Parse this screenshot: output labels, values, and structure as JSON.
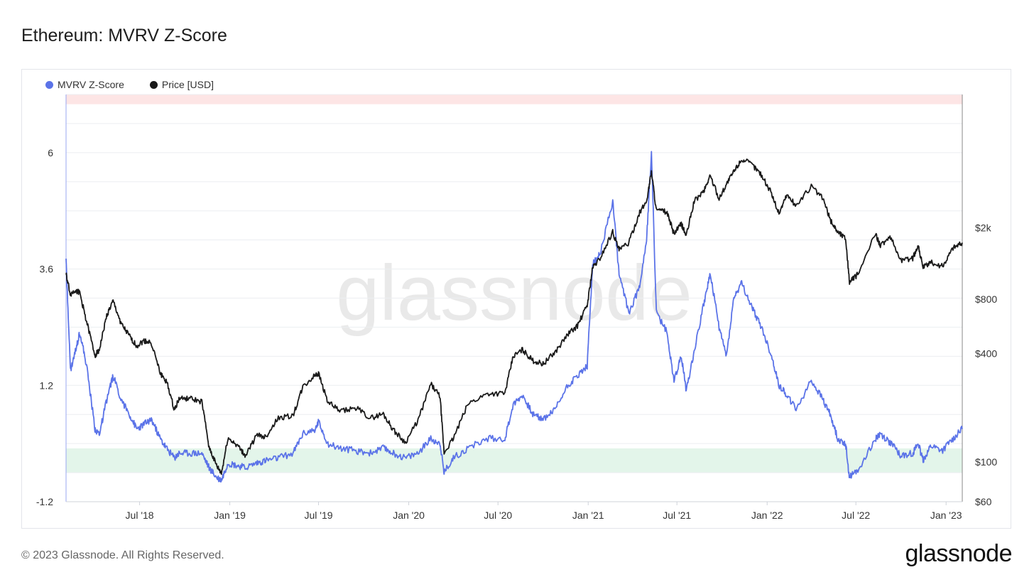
{
  "title": "Ethereum: MVRV Z-Score",
  "footer": {
    "copyright": "© 2023 Glassnode. All Rights Reserved.",
    "brand": "glassnode",
    "watermark": "glassnode"
  },
  "colors": {
    "mvrv": "#5b73e8",
    "price": "#1a1a1a",
    "red_band": "#fde5e5",
    "green_band": "#e3f5ea",
    "grid": "#eceef1"
  },
  "legend": {
    "mvrv_label": "MVRV Z-Score",
    "price_label": "Price [USD]"
  },
  "chart_data": {
    "type": "line",
    "title": "Ethereum: MVRV Z-Score",
    "x_range": [
      "2018-02-01",
      "2023-02-03"
    ],
    "x_ticks": [
      {
        "label": "Jul '18",
        "date": "2018-07-01"
      },
      {
        "label": "Jan '19",
        "date": "2019-01-01"
      },
      {
        "label": "Jul '19",
        "date": "2019-07-01"
      },
      {
        "label": "Jan '20",
        "date": "2020-01-01"
      },
      {
        "label": "Jul '20",
        "date": "2020-07-01"
      },
      {
        "label": "Jan '21",
        "date": "2021-01-01"
      },
      {
        "label": "Jul '21",
        "date": "2021-07-01"
      },
      {
        "label": "Jan '22",
        "date": "2022-01-01"
      },
      {
        "label": "Jul '22",
        "date": "2022-07-01"
      },
      {
        "label": "Jan '23",
        "date": "2023-01-01"
      }
    ],
    "y_left": {
      "ylim": [
        -1.2,
        7.2
      ],
      "ticks": [
        {
          "label": "-1.2",
          "value": -1.2
        },
        {
          "label": "1.2",
          "value": 1.2
        },
        {
          "label": "3.6",
          "value": 3.6
        },
        {
          "label": "6",
          "value": 6
        }
      ]
    },
    "y_right": {
      "scale": "log",
      "ylim": [
        60,
        11000
      ],
      "ticks": [
        {
          "label": "$60",
          "value": 60
        },
        {
          "label": "$100",
          "value": 100
        },
        {
          "label": "$400",
          "value": 400
        },
        {
          "label": "$800",
          "value": 800
        },
        {
          "label": "$2k",
          "value": 2000
        }
      ]
    },
    "bands": [
      {
        "name": "red",
        "from": 7.0,
        "to": 7.2
      },
      {
        "name": "green",
        "from": -0.1,
        "to": -0.6
      }
    ],
    "series": [
      {
        "name": "MVRV Z-Score",
        "axis": "left",
        "points": [
          [
            "2018-02-01",
            3.8
          ],
          [
            "2018-02-10",
            1.5
          ],
          [
            "2018-02-20",
            1.9
          ],
          [
            "2018-03-01",
            2.3
          ],
          [
            "2018-03-15",
            1.6
          ],
          [
            "2018-04-01",
            0.3
          ],
          [
            "2018-04-10",
            0.2
          ],
          [
            "2018-04-25",
            0.9
          ],
          [
            "2018-05-08",
            1.4
          ],
          [
            "2018-05-25",
            0.9
          ],
          [
            "2018-06-10",
            0.6
          ],
          [
            "2018-06-25",
            0.3
          ],
          [
            "2018-07-10",
            0.4
          ],
          [
            "2018-07-25",
            0.5
          ],
          [
            "2018-08-12",
            0.1
          ],
          [
            "2018-08-25",
            -0.1
          ],
          [
            "2018-09-10",
            -0.3
          ],
          [
            "2018-09-20",
            -0.2
          ],
          [
            "2018-10-10",
            -0.2
          ],
          [
            "2018-11-05",
            -0.2
          ],
          [
            "2018-11-20",
            -0.5
          ],
          [
            "2018-12-05",
            -0.7
          ],
          [
            "2018-12-15",
            -0.75
          ],
          [
            "2018-12-28",
            -0.4
          ],
          [
            "2019-01-15",
            -0.45
          ],
          [
            "2019-02-01",
            -0.5
          ],
          [
            "2019-02-25",
            -0.4
          ],
          [
            "2019-03-15",
            -0.35
          ],
          [
            "2019-04-10",
            -0.3
          ],
          [
            "2019-05-10",
            -0.2
          ],
          [
            "2019-05-30",
            0.2
          ],
          [
            "2019-06-25",
            0.3
          ],
          [
            "2019-07-01",
            0.45
          ],
          [
            "2019-07-20",
            0.0
          ],
          [
            "2019-08-15",
            -0.1
          ],
          [
            "2019-09-15",
            -0.15
          ],
          [
            "2019-10-15",
            -0.2
          ],
          [
            "2019-11-10",
            -0.1
          ],
          [
            "2019-12-01",
            -0.2
          ],
          [
            "2019-12-25",
            -0.3
          ],
          [
            "2020-01-20",
            -0.2
          ],
          [
            "2020-02-15",
            0.1
          ],
          [
            "2020-03-05",
            0.0
          ],
          [
            "2020-03-13",
            -0.6
          ],
          [
            "2020-04-01",
            -0.3
          ],
          [
            "2020-05-01",
            -0.1
          ],
          [
            "2020-06-10",
            0.1
          ],
          [
            "2020-07-15",
            0.1
          ],
          [
            "2020-08-01",
            0.8
          ],
          [
            "2020-08-20",
            1.0
          ],
          [
            "2020-09-10",
            0.6
          ],
          [
            "2020-10-01",
            0.5
          ],
          [
            "2020-10-25",
            0.7
          ],
          [
            "2020-11-20",
            1.2
          ],
          [
            "2020-12-10",
            1.4
          ],
          [
            "2020-12-30",
            1.6
          ],
          [
            "2021-01-10",
            3.7
          ],
          [
            "2021-01-25",
            3.9
          ],
          [
            "2021-02-20",
            5.0
          ],
          [
            "2021-03-05",
            3.5
          ],
          [
            "2021-03-25",
            2.7
          ],
          [
            "2021-04-15",
            3.2
          ],
          [
            "2021-04-30",
            4.2
          ],
          [
            "2021-05-10",
            6.0
          ],
          [
            "2021-05-20",
            2.7
          ],
          [
            "2021-06-10",
            2.3
          ],
          [
            "2021-06-25",
            1.3
          ],
          [
            "2021-07-10",
            1.8
          ],
          [
            "2021-07-20",
            1.1
          ],
          [
            "2021-08-05",
            1.9
          ],
          [
            "2021-08-25",
            2.9
          ],
          [
            "2021-09-07",
            3.5
          ],
          [
            "2021-09-25",
            2.4
          ],
          [
            "2021-10-10",
            1.8
          ],
          [
            "2021-10-25",
            3.0
          ],
          [
            "2021-11-10",
            3.3
          ],
          [
            "2021-12-01",
            2.8
          ],
          [
            "2021-12-20",
            2.4
          ],
          [
            "2022-01-10",
            1.8
          ],
          [
            "2022-01-25",
            1.2
          ],
          [
            "2022-02-10",
            1.0
          ],
          [
            "2022-03-01",
            0.7
          ],
          [
            "2022-04-01",
            1.3
          ],
          [
            "2022-04-25",
            0.9
          ],
          [
            "2022-05-10",
            0.6
          ],
          [
            "2022-05-25",
            0.1
          ],
          [
            "2022-06-10",
            0.0
          ],
          [
            "2022-06-18",
            -0.7
          ],
          [
            "2022-07-05",
            -0.55
          ],
          [
            "2022-08-10",
            0.1
          ],
          [
            "2022-08-20",
            0.2
          ],
          [
            "2022-09-10",
            0.0
          ],
          [
            "2022-10-01",
            -0.25
          ],
          [
            "2022-10-25",
            -0.2
          ],
          [
            "2022-11-05",
            0.0
          ],
          [
            "2022-11-15",
            -0.35
          ],
          [
            "2022-12-01",
            -0.05
          ],
          [
            "2022-12-25",
            -0.15
          ],
          [
            "2023-01-15",
            0.1
          ],
          [
            "2023-02-03",
            0.3
          ]
        ]
      },
      {
        "name": "Price [USD]",
        "axis": "right",
        "points": [
          [
            "2018-02-01",
            1100
          ],
          [
            "2018-02-10",
            850
          ],
          [
            "2018-02-20",
            900
          ],
          [
            "2018-03-01",
            870
          ],
          [
            "2018-03-15",
            600
          ],
          [
            "2018-04-01",
            390
          ],
          [
            "2018-04-10",
            420
          ],
          [
            "2018-04-25",
            650
          ],
          [
            "2018-05-08",
            780
          ],
          [
            "2018-05-25",
            580
          ],
          [
            "2018-06-10",
            500
          ],
          [
            "2018-06-25",
            440
          ],
          [
            "2018-07-10",
            470
          ],
          [
            "2018-07-25",
            460
          ],
          [
            "2018-08-12",
            310
          ],
          [
            "2018-08-25",
            280
          ],
          [
            "2018-09-10",
            195
          ],
          [
            "2018-09-20",
            225
          ],
          [
            "2018-10-10",
            225
          ],
          [
            "2018-11-05",
            215
          ],
          [
            "2018-11-20",
            120
          ],
          [
            "2018-12-05",
            95
          ],
          [
            "2018-12-15",
            86
          ],
          [
            "2018-12-28",
            135
          ],
          [
            "2019-01-15",
            125
          ],
          [
            "2019-02-01",
            108
          ],
          [
            "2019-02-25",
            140
          ],
          [
            "2019-03-15",
            138
          ],
          [
            "2019-04-10",
            175
          ],
          [
            "2019-05-10",
            180
          ],
          [
            "2019-05-30",
            260
          ],
          [
            "2019-06-25",
            305
          ],
          [
            "2019-07-01",
            310
          ],
          [
            "2019-07-20",
            215
          ],
          [
            "2019-08-15",
            190
          ],
          [
            "2019-09-15",
            200
          ],
          [
            "2019-10-15",
            175
          ],
          [
            "2019-11-10",
            185
          ],
          [
            "2019-12-01",
            150
          ],
          [
            "2019-12-25",
            128
          ],
          [
            "2020-01-20",
            170
          ],
          [
            "2020-02-15",
            270
          ],
          [
            "2020-03-05",
            230
          ],
          [
            "2020-03-13",
            112
          ],
          [
            "2020-04-01",
            135
          ],
          [
            "2020-05-01",
            210
          ],
          [
            "2020-06-10",
            240
          ],
          [
            "2020-07-15",
            240
          ],
          [
            "2020-08-01",
            385
          ],
          [
            "2020-08-20",
            420
          ],
          [
            "2020-09-10",
            365
          ],
          [
            "2020-10-01",
            350
          ],
          [
            "2020-10-25",
            405
          ],
          [
            "2020-11-20",
            510
          ],
          [
            "2020-12-10",
            570
          ],
          [
            "2020-12-30",
            740
          ],
          [
            "2021-01-10",
            1200
          ],
          [
            "2021-01-25",
            1350
          ],
          [
            "2021-02-20",
            1900
          ],
          [
            "2021-03-05",
            1500
          ],
          [
            "2021-03-25",
            1650
          ],
          [
            "2021-04-15",
            2400
          ],
          [
            "2021-04-30",
            2800
          ],
          [
            "2021-05-10",
            4100
          ],
          [
            "2021-05-20",
            2500
          ],
          [
            "2021-06-10",
            2450
          ],
          [
            "2021-06-25",
            1850
          ],
          [
            "2021-07-10",
            2100
          ],
          [
            "2021-07-20",
            1800
          ],
          [
            "2021-08-05",
            2800
          ],
          [
            "2021-08-25",
            3200
          ],
          [
            "2021-09-07",
            3900
          ],
          [
            "2021-09-25",
            2900
          ],
          [
            "2021-10-10",
            3500
          ],
          [
            "2021-10-25",
            4100
          ],
          [
            "2021-11-10",
            4800
          ],
          [
            "2021-12-01",
            4500
          ],
          [
            "2021-12-20",
            3950
          ],
          [
            "2022-01-10",
            3100
          ],
          [
            "2022-01-25",
            2400
          ],
          [
            "2022-02-10",
            3050
          ],
          [
            "2022-03-01",
            2650
          ],
          [
            "2022-04-01",
            3400
          ],
          [
            "2022-04-25",
            2900
          ],
          [
            "2022-05-10",
            2200
          ],
          [
            "2022-05-25",
            1900
          ],
          [
            "2022-06-10",
            1750
          ],
          [
            "2022-06-18",
            1000
          ],
          [
            "2022-07-05",
            1100
          ],
          [
            "2022-08-10",
            1850
          ],
          [
            "2022-08-20",
            1600
          ],
          [
            "2022-09-10",
            1750
          ],
          [
            "2022-10-01",
            1320
          ],
          [
            "2022-10-25",
            1350
          ],
          [
            "2022-11-05",
            1600
          ],
          [
            "2022-11-15",
            1200
          ],
          [
            "2022-12-01",
            1280
          ],
          [
            "2022-12-25",
            1220
          ],
          [
            "2023-01-15",
            1550
          ],
          [
            "2023-02-03",
            1650
          ]
        ]
      }
    ]
  }
}
